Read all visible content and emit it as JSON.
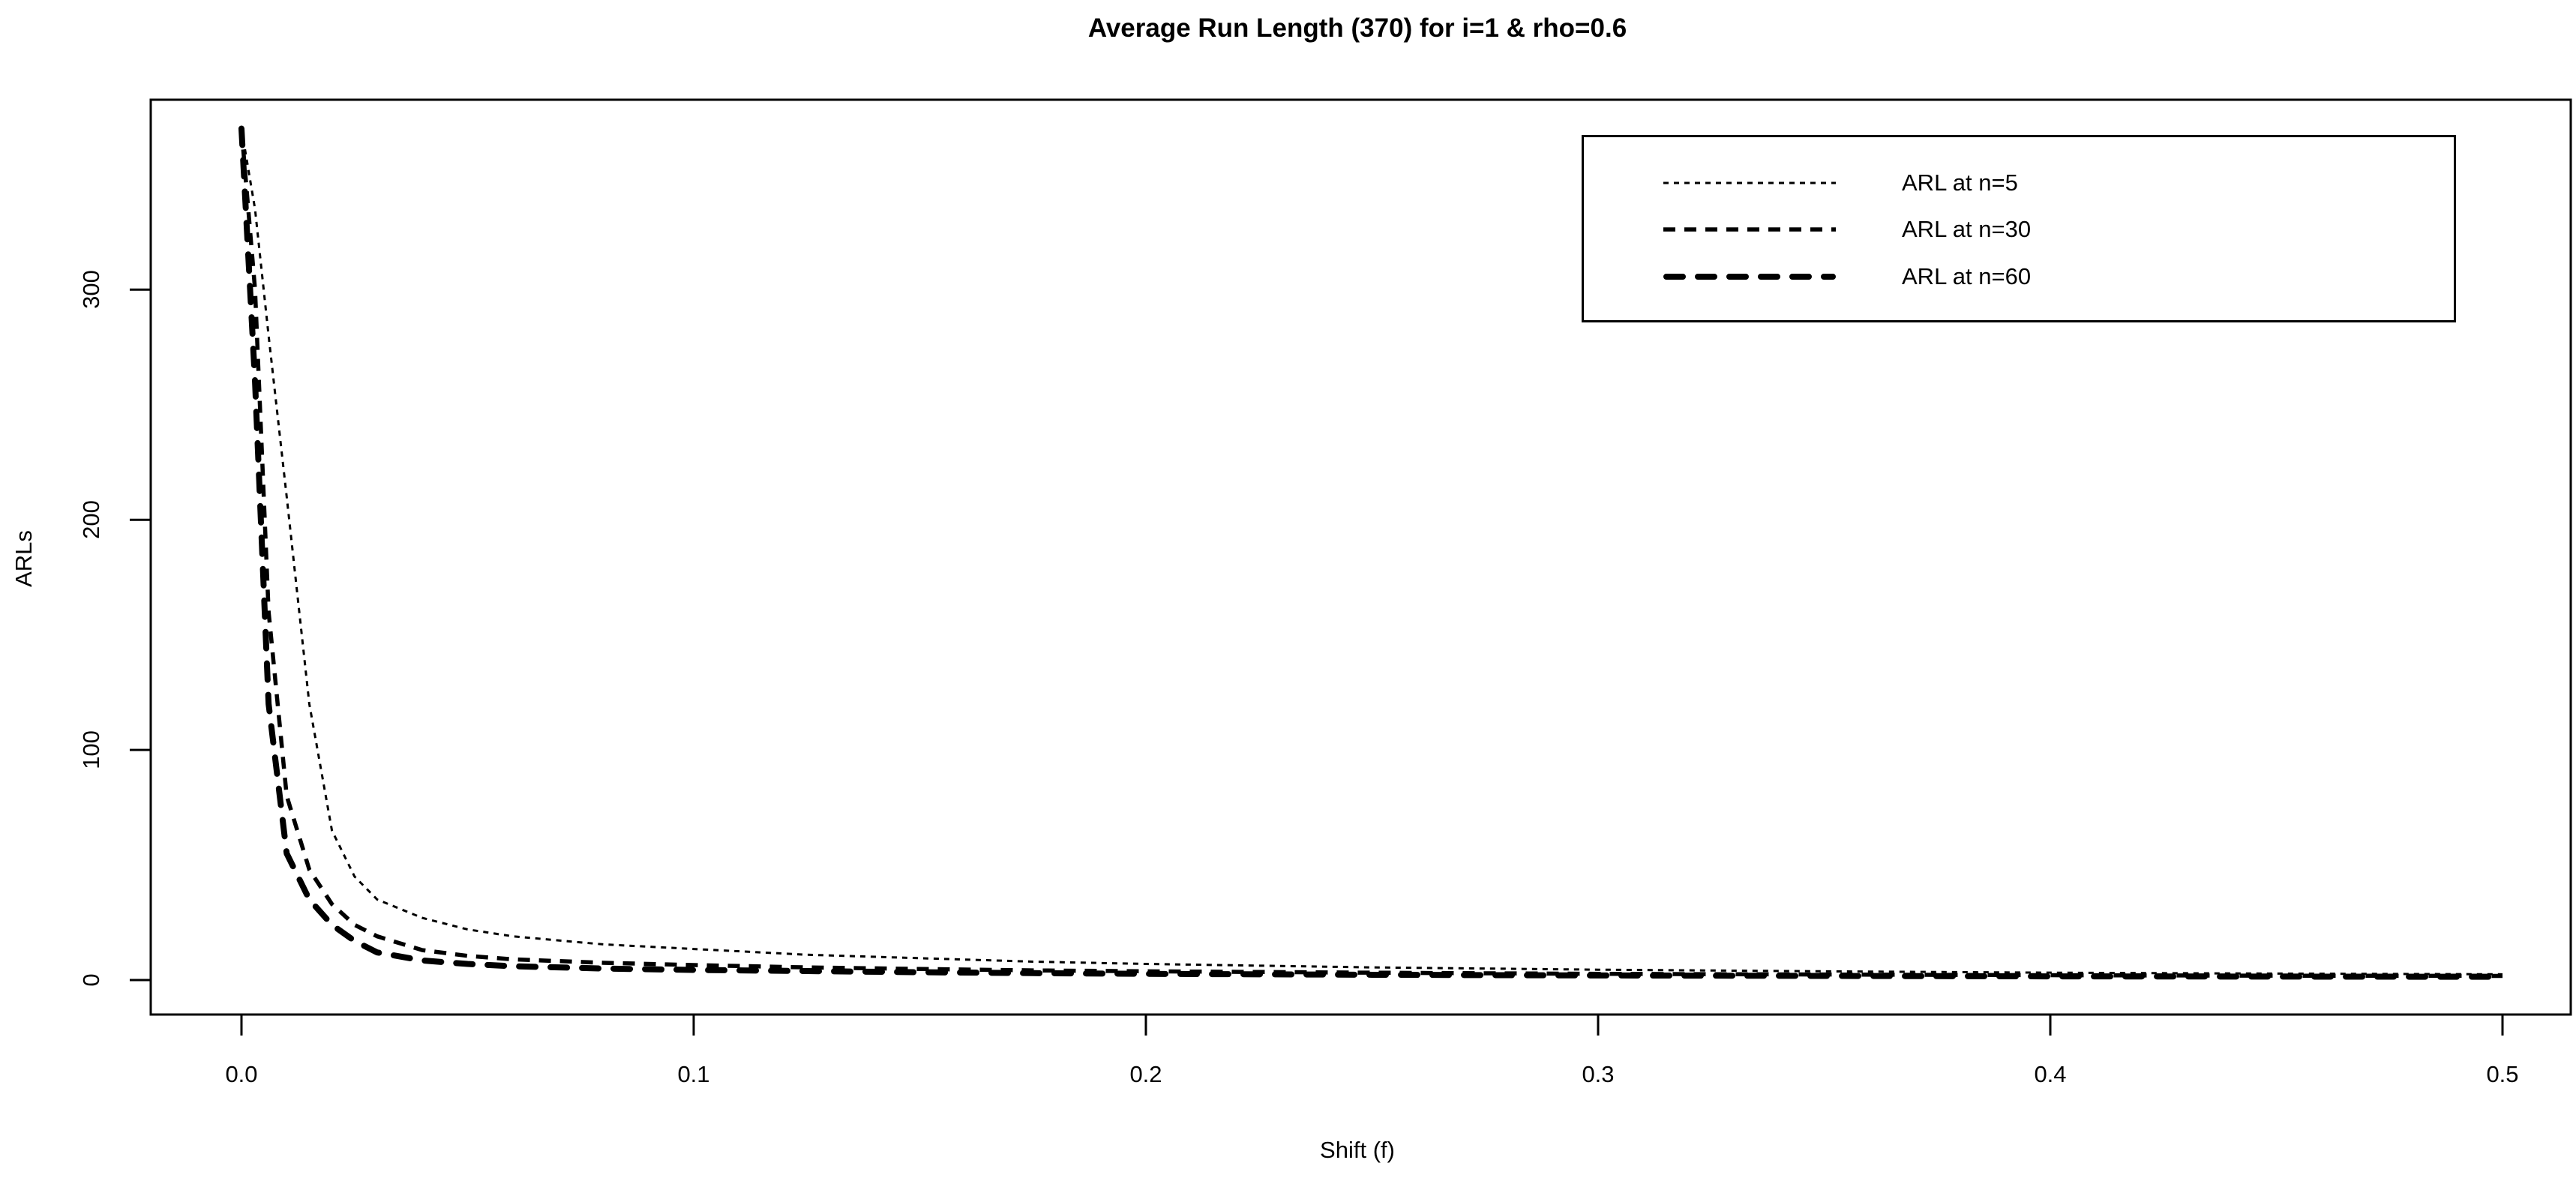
{
  "title": "Average Run Length (370) for i=1 & rho=0.6",
  "axes": {
    "xlabel": "Shift (f)",
    "ylabel": "ARLs",
    "x_tick_labels": [
      "0.0",
      "0.1",
      "0.2",
      "0.3",
      "0.4",
      "0.5"
    ],
    "y_tick_labels": [
      "0",
      "100",
      "200",
      "300"
    ]
  },
  "colors": {
    "foreground": "#000000",
    "background": "#ffffff"
  },
  "chart_data": {
    "type": "line",
    "title": "Average Run Length (370) for i=1 & rho=0.6",
    "xlabel": "Shift (f)",
    "ylabel": "ARLs",
    "xlim": [
      0,
      0.5
    ],
    "ylim": [
      0,
      370
    ],
    "x_ticks": [
      0.0,
      0.1,
      0.2,
      0.3,
      0.4,
      0.5
    ],
    "x_tick_labels": [
      "0.0",
      "0.1",
      "0.2",
      "0.3",
      "0.4",
      "0.5"
    ],
    "y_ticks": [
      0,
      100,
      200,
      300
    ],
    "y_tick_labels": [
      "0",
      "100",
      "200",
      "300"
    ],
    "grid": false,
    "legend_position": "top-right",
    "line_color": "#000000",
    "x": [
      0,
      0.003,
      0.006,
      0.01,
      0.015,
      0.02,
      0.025,
      0.03,
      0.04,
      0.05,
      0.06,
      0.08,
      0.1,
      0.125,
      0.15,
      0.175,
      0.2,
      0.25,
      0.3,
      0.35,
      0.4,
      0.45,
      0.5
    ],
    "series": [
      {
        "name": "ARL at n=5",
        "line_style": "short-dash",
        "line_width": 3,
        "values": [
          370,
          335,
          280,
          210,
          120,
          65,
          45,
          35,
          27,
          22,
          19,
          15.5,
          13.5,
          11,
          9.5,
          8,
          7,
          5.5,
          4.5,
          3.8,
          3.2,
          2.8,
          2.5
        ]
      },
      {
        "name": "ARL at n=30",
        "line_style": "medium-dash",
        "line_width": 5.5,
        "values": [
          370,
          300,
          160,
          80,
          48,
          33,
          24,
          19,
          13,
          10.5,
          9,
          7.5,
          6.5,
          5.5,
          4.8,
          4.2,
          3.8,
          3.2,
          2.7,
          2.4,
          2.1,
          1.9,
          1.8
        ]
      },
      {
        "name": "ARL at n=60",
        "line_style": "long-dash",
        "line_width": 8,
        "values": [
          370,
          260,
          120,
          55,
          35,
          24,
          17,
          12,
          8.5,
          7,
          6,
          5,
          4.4,
          3.9,
          3.4,
          3,
          2.7,
          2.3,
          2,
          1.8,
          1.6,
          1.5,
          1.4
        ]
      }
    ]
  }
}
